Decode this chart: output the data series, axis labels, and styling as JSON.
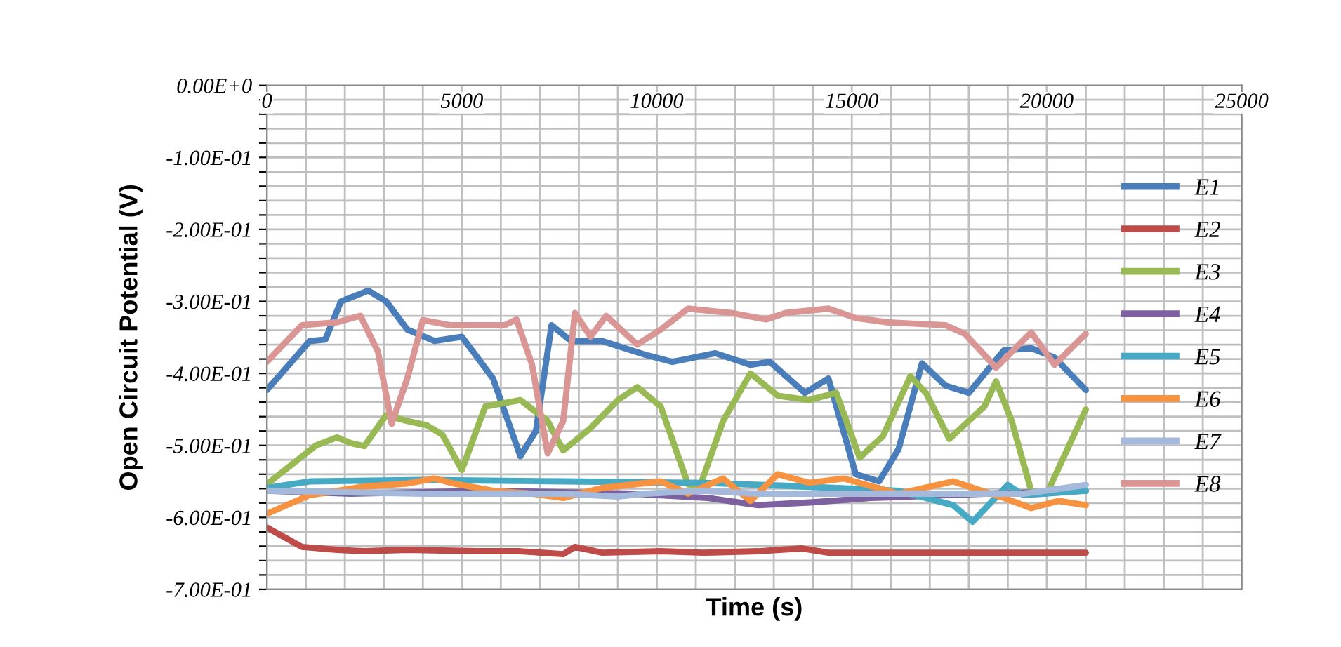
{
  "chart_data": {
    "type": "line",
    "xlabel": "Time (s)",
    "ylabel": "Open Circuit Potential (V)",
    "xlim": [
      0,
      25000
    ],
    "xticks": [
      0,
      {
        "value": 1000,
        "label": null
      },
      {
        "value": 2000,
        "label": null
      },
      {
        "value": 3000,
        "label": null
      },
      {
        "value": 4000,
        "label": null
      },
      5000,
      {
        "value": 6000,
        "label": null
      },
      {
        "value": 7000,
        "label": null
      },
      {
        "value": 8000,
        "label": null
      },
      {
        "value": 9000,
        "label": null
      },
      10000,
      {
        "value": 11000,
        "label": null
      },
      {
        "value": 12000,
        "label": null
      },
      {
        "value": 13000,
        "label": null
      },
      {
        "value": 14000,
        "label": null
      },
      15000,
      {
        "value": 16000,
        "label": null
      },
      {
        "value": 17000,
        "label": null
      },
      {
        "value": 18000,
        "label": null
      },
      {
        "value": 19000,
        "label": null
      },
      20000,
      {
        "value": 21000,
        "label": null
      },
      {
        "value": 22000,
        "label": null
      },
      {
        "value": 23000,
        "label": null
      },
      {
        "value": 24000,
        "label": null
      },
      25000
    ],
    "ylim": [
      -0.7,
      0
    ],
    "yticks": [
      {
        "value": 0,
        "label": "0.00E+0"
      },
      {
        "value": -0.02,
        "label": null
      },
      {
        "value": -0.04,
        "label": null
      },
      {
        "value": -0.06,
        "label": null
      },
      {
        "value": -0.08,
        "label": null
      },
      {
        "value": -0.1,
        "label": "-1.00E-01"
      },
      {
        "value": -0.12,
        "label": null
      },
      {
        "value": -0.14,
        "label": null
      },
      {
        "value": -0.16,
        "label": null
      },
      {
        "value": -0.18,
        "label": null
      },
      {
        "value": -0.2,
        "label": "-2.00E-01"
      },
      {
        "value": -0.22,
        "label": null
      },
      {
        "value": -0.24,
        "label": null
      },
      {
        "value": -0.26,
        "label": null
      },
      {
        "value": -0.28,
        "label": null
      },
      {
        "value": -0.3,
        "label": "-3.00E-01"
      },
      {
        "value": -0.32,
        "label": null
      },
      {
        "value": -0.34,
        "label": null
      },
      {
        "value": -0.36,
        "label": null
      },
      {
        "value": -0.38,
        "label": null
      },
      {
        "value": -0.4,
        "label": "-4.00E-01"
      },
      {
        "value": -0.42,
        "label": null
      },
      {
        "value": -0.44,
        "label": null
      },
      {
        "value": -0.46,
        "label": null
      },
      {
        "value": -0.48,
        "label": null
      },
      {
        "value": -0.5,
        "label": "-5.00E-01"
      },
      {
        "value": -0.52,
        "label": null
      },
      {
        "value": -0.54,
        "label": null
      },
      {
        "value": -0.56,
        "label": null
      },
      {
        "value": -0.58,
        "label": null
      },
      {
        "value": -0.6,
        "label": "-6.00E-01"
      },
      {
        "value": -0.62,
        "label": null
      },
      {
        "value": -0.64,
        "label": null
      },
      {
        "value": -0.66,
        "label": null
      },
      {
        "value": -0.68,
        "label": null
      },
      {
        "value": -0.7,
        "label": "-7.00E-01"
      }
    ],
    "grid": true,
    "legend": "right",
    "marker": "none",
    "line_style": "solid",
    "series": [
      {
        "name": "E1",
        "color": "#4a7ebb",
        "x": [
          0,
          1100,
          1500,
          1900,
          2600,
          3060,
          3600,
          4300,
          5000,
          5800,
          6500,
          6900,
          7300,
          7800,
          8600,
          9700,
          10400,
          11500,
          12400,
          12900,
          13800,
          14400,
          15100,
          15700,
          16200,
          16800,
          17400,
          18000,
          18900,
          19600,
          20200,
          21000
        ],
        "values": [
          -0.423,
          -0.355,
          -0.353,
          -0.3,
          -0.285,
          -0.3,
          -0.339,
          -0.355,
          -0.349,
          -0.407,
          -0.515,
          -0.48,
          -0.333,
          -0.355,
          -0.355,
          -0.374,
          -0.384,
          -0.372,
          -0.388,
          -0.384,
          -0.427,
          -0.407,
          -0.54,
          -0.55,
          -0.505,
          -0.386,
          -0.417,
          -0.427,
          -0.368,
          -0.365,
          -0.378,
          -0.423
        ]
      },
      {
        "name": "E2",
        "color": "#be4b48",
        "x": [
          0,
          900,
          1800,
          2500,
          3600,
          5400,
          6500,
          7600,
          7900,
          8600,
          10100,
          11200,
          12600,
          13700,
          14400,
          16600,
          21000
        ],
        "values": [
          -0.614,
          -0.641,
          -0.645,
          -0.647,
          -0.645,
          -0.647,
          -0.647,
          -0.651,
          -0.641,
          -0.649,
          -0.647,
          -0.649,
          -0.647,
          -0.643,
          -0.649,
          -0.649,
          -0.649
        ]
      },
      {
        "name": "E3",
        "color": "#98b954",
        "x": [
          0,
          1260,
          1800,
          2160,
          2500,
          3060,
          3600,
          4100,
          4500,
          5000,
          5600,
          6500,
          7200,
          7600,
          8300,
          9000,
          9500,
          10100,
          10800,
          11100,
          11700,
          12400,
          13100,
          13900,
          14600,
          15200,
          15800,
          16500,
          16900,
          17500,
          18400,
          18700,
          19100,
          19600,
          20000,
          21000
        ],
        "values": [
          -0.554,
          -0.5,
          -0.489,
          -0.497,
          -0.501,
          -0.458,
          -0.466,
          -0.472,
          -0.485,
          -0.534,
          -0.446,
          -0.437,
          -0.466,
          -0.507,
          -0.476,
          -0.437,
          -0.419,
          -0.446,
          -0.554,
          -0.558,
          -0.466,
          -0.4,
          -0.431,
          -0.437,
          -0.427,
          -0.517,
          -0.487,
          -0.404,
          -0.427,
          -0.491,
          -0.446,
          -0.411,
          -0.466,
          -0.563,
          -0.567,
          -0.45
        ]
      },
      {
        "name": "E4",
        "color": "#7d60a0",
        "x": [
          0,
          2160,
          5800,
          9400,
          11300,
          12600,
          14000,
          15500,
          18400,
          21000
        ],
        "values": [
          -0.563,
          -0.567,
          -0.563,
          -0.567,
          -0.573,
          -0.583,
          -0.579,
          -0.573,
          -0.567,
          -0.563
        ]
      },
      {
        "name": "E5",
        "color": "#46aac5",
        "x": [
          0,
          1100,
          4000,
          7600,
          11200,
          13300,
          16200,
          17600,
          18100,
          18500,
          19000,
          19400,
          21000
        ],
        "values": [
          -0.559,
          -0.55,
          -0.548,
          -0.55,
          -0.552,
          -0.556,
          -0.563,
          -0.583,
          -0.606,
          -0.583,
          -0.555,
          -0.569,
          -0.563
        ]
      },
      {
        "name": "E6",
        "color": "#f69240",
        "x": [
          0,
          1100,
          2500,
          3600,
          4300,
          4800,
          5800,
          6800,
          7600,
          8600,
          10100,
          10800,
          11700,
          12400,
          13100,
          13900,
          14800,
          16200,
          17600,
          18900,
          19600,
          20300,
          21000
        ],
        "values": [
          -0.595,
          -0.569,
          -0.557,
          -0.553,
          -0.546,
          -0.553,
          -0.563,
          -0.567,
          -0.573,
          -0.559,
          -0.55,
          -0.567,
          -0.546,
          -0.577,
          -0.54,
          -0.552,
          -0.546,
          -0.567,
          -0.55,
          -0.573,
          -0.587,
          -0.577,
          -0.583
        ]
      },
      {
        "name": "E7",
        "color": "#a5b9dc",
        "x": [
          0,
          4000,
          7600,
          9000,
          9700,
          11200,
          12600,
          14800,
          18400,
          19400,
          21000
        ],
        "values": [
          -0.563,
          -0.567,
          -0.567,
          -0.571,
          -0.567,
          -0.563,
          -0.567,
          -0.567,
          -0.567,
          -0.567,
          -0.555
        ]
      },
      {
        "name": "E8",
        "color": "#d99694",
        "x": [
          0,
          900,
          1800,
          2400,
          2850,
          3200,
          3600,
          4000,
          4700,
          6100,
          6400,
          6800,
          7200,
          7600,
          7900,
          8300,
          8700,
          9200,
          9500,
          10100,
          10800,
          11900,
          12800,
          13300,
          14400,
          15100,
          15900,
          17400,
          17900,
          18700,
          19600,
          20200,
          21000
        ],
        "values": [
          -0.384,
          -0.333,
          -0.329,
          -0.32,
          -0.37,
          -0.47,
          -0.407,
          -0.326,
          -0.333,
          -0.333,
          -0.325,
          -0.388,
          -0.511,
          -0.466,
          -0.316,
          -0.349,
          -0.32,
          -0.345,
          -0.36,
          -0.339,
          -0.31,
          -0.316,
          -0.325,
          -0.316,
          -0.31,
          -0.323,
          -0.329,
          -0.333,
          -0.345,
          -0.392,
          -0.343,
          -0.388,
          -0.345
        ]
      }
    ]
  }
}
